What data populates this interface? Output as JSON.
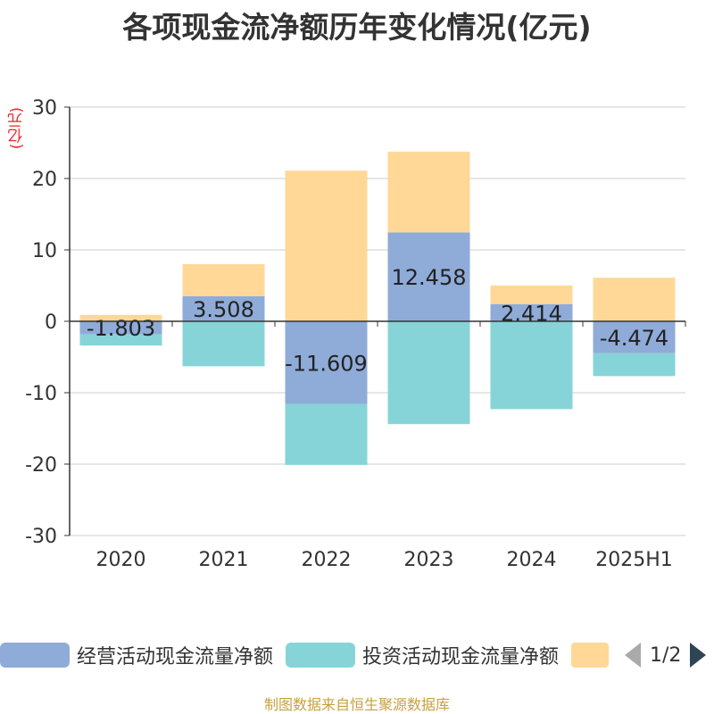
{
  "title": "各项现金流净额历年变化情况(亿元)",
  "unit_label": "(亿元)",
  "source": "制图数据来自恒生聚源数据库",
  "legend": {
    "items": [
      {
        "label": "经营活动现金流量净额",
        "color": "#8fabd8"
      },
      {
        "label": "投资活动现金流量净额",
        "color": "#86d4d8"
      },
      {
        "label": "",
        "color": "#ffd898"
      }
    ],
    "page": "1/2"
  },
  "chart_data": {
    "type": "bar",
    "stacked": true,
    "categories": [
      "2020",
      "2021",
      "2022",
      "2023",
      "2024",
      "2025H1"
    ],
    "ylim": [
      -30,
      30
    ],
    "yticks": [
      30,
      20,
      10,
      0,
      -10,
      -20,
      -30
    ],
    "grid": true,
    "legend_position": "bottom",
    "series": [
      {
        "name": "经营活动现金流量净额",
        "color": "#8fabd8",
        "values": [
          -1.803,
          3.508,
          -11.609,
          12.458,
          2.414,
          -4.474
        ],
        "labels": [
          "-1.803",
          "3.508",
          "-11.609",
          "12.458",
          "2.414",
          "-4.474"
        ]
      },
      {
        "name": "投资活动现金流量净额",
        "color": "#86d4d8",
        "values": [
          -1.6,
          -6.3,
          -8.5,
          -14.4,
          -12.3,
          -3.2
        ]
      },
      {
        "color": "#ffd898",
        "values": [
          0.9,
          4.5,
          21.1,
          11.3,
          2.6,
          6.1
        ]
      }
    ]
  }
}
